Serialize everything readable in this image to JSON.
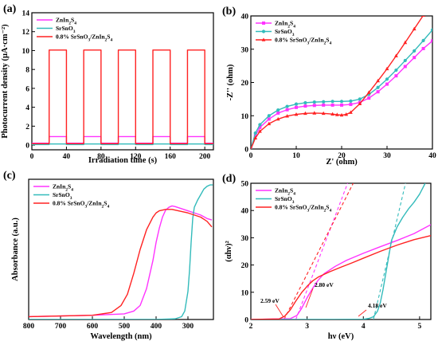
{
  "chart_data": [
    {
      "panel": "(a)",
      "type": "line",
      "xlabel": "Irradiation time (s)",
      "ylabel": "Photocurrent density (μA·cm⁻²)",
      "xlim": [
        0,
        210
      ],
      "ylim": [
        -0.5,
        14
      ],
      "xticks": [
        "0",
        "40",
        "80",
        "120",
        "160",
        "200"
      ],
      "yticks": [
        "0",
        "2",
        "4",
        "6",
        "8",
        "10",
        "12",
        "14"
      ],
      "legend": "top-left",
      "on_intervals": [
        [
          20,
          40
        ],
        [
          60,
          80
        ],
        [
          100,
          120
        ],
        [
          140,
          160
        ],
        [
          180,
          200
        ]
      ],
      "series": [
        {
          "name": "ZnIn2S4",
          "color": "#ff33ff",
          "on": 0.9,
          "off": 0.2
        },
        {
          "name": "SrSnO3",
          "color": "#33bbbb",
          "on": 0.12,
          "off": 0.05
        },
        {
          "name": "0.8% SrSnO3/ZnIn2S4",
          "color": "#ff2222",
          "on": 10.05,
          "off": 0.15
        }
      ]
    },
    {
      "panel": "(b)",
      "type": "line",
      "xlabel": "Z' (ohm)",
      "ylabel": "-Z'' (ohm)",
      "xlim": [
        0,
        40
      ],
      "ylim": [
        0,
        40
      ],
      "xticks": [
        "0",
        "10",
        "20",
        "30",
        "40"
      ],
      "yticks": [
        "0",
        "10",
        "20",
        "30",
        "40"
      ],
      "legend": "top-left",
      "series": [
        {
          "name": "ZnIn2S4",
          "color": "#ff33ff",
          "marker": "square",
          "x": [
            0,
            1,
            2,
            4,
            6,
            8,
            10,
            12,
            14,
            16,
            18,
            20,
            22,
            24,
            26,
            28,
            30,
            32,
            34,
            36,
            38,
            40
          ],
          "y": [
            0,
            4,
            6.5,
            9,
            10.8,
            11.8,
            12.5,
            12.9,
            13.1,
            13.2,
            13.2,
            13.2,
            13.4,
            14,
            15.3,
            17.2,
            19.5,
            22,
            24.8,
            27.5,
            30.2,
            32.5
          ]
        },
        {
          "name": "SrSnO3",
          "color": "#33bbbb",
          "marker": "circle",
          "x": [
            0,
            1,
            2,
            4,
            6,
            8,
            10,
            12,
            14,
            16,
            18,
            20,
            22,
            24,
            26,
            28,
            30,
            32,
            34,
            36,
            38,
            40
          ],
          "y": [
            0,
            4.8,
            7.3,
            10,
            11.7,
            12.8,
            13.5,
            13.9,
            14.1,
            14.2,
            14.3,
            14.3,
            14.4,
            15,
            16.4,
            18.5,
            21,
            23.7,
            26.6,
            29.5,
            32.6,
            35.8
          ]
        },
        {
          "name": "0.8% SrSnO3/ZnIn2S4",
          "color": "#ff2222",
          "marker": "triangle",
          "x": [
            0,
            1,
            2,
            4,
            6,
            8,
            10,
            12,
            14,
            16,
            18,
            19,
            20,
            21,
            22,
            24,
            26,
            28,
            30,
            32,
            34,
            36,
            38
          ],
          "y": [
            0,
            3.3,
            5.3,
            7.6,
            9,
            9.9,
            10.4,
            10.7,
            10.8,
            10.7,
            10.5,
            10.3,
            10.2,
            10.4,
            11,
            13.6,
            17,
            20.5,
            24.1,
            28,
            32,
            36.1,
            40.2
          ]
        }
      ]
    },
    {
      "panel": "(c)",
      "type": "line",
      "xlabel": "Wavelength (nm)",
      "ylabel": "Absorbance (a.u.)",
      "xlim": [
        800,
        220
      ],
      "ylim": [
        0,
        1
      ],
      "xticks": [
        "800",
        "700",
        "600",
        "500",
        "400",
        "300"
      ],
      "yticks": [],
      "legend": "top-left",
      "series": [
        {
          "name": "ZnIn2S4",
          "color": "#ff33ff",
          "x": [
            800,
            600,
            500,
            470,
            450,
            430,
            410,
            400,
            390,
            380,
            370,
            360,
            350,
            340,
            320,
            300,
            280,
            260,
            240,
            225
          ],
          "y": [
            0.02,
            0.03,
            0.04,
            0.06,
            0.1,
            0.22,
            0.42,
            0.55,
            0.65,
            0.73,
            0.78,
            0.8,
            0.81,
            0.805,
            0.79,
            0.775,
            0.76,
            0.745,
            0.72,
            0.71
          ]
        },
        {
          "name": "SrSnO3",
          "color": "#33bbbb",
          "x": [
            800,
            600,
            400,
            340,
            320,
            310,
            300,
            295,
            290,
            285,
            280,
            270,
            260,
            250,
            240,
            230,
            222
          ],
          "y": [
            0.0,
            0.0,
            0.0,
            0.005,
            0.02,
            0.06,
            0.2,
            0.35,
            0.55,
            0.72,
            0.8,
            0.85,
            0.89,
            0.93,
            0.95,
            0.96,
            0.96
          ]
        },
        {
          "name": "0.8% SrSnO3/ZnIn2S4",
          "color": "#ff2222",
          "x": [
            800,
            600,
            540,
            510,
            490,
            470,
            450,
            430,
            410,
            400,
            390,
            380,
            370,
            350,
            320,
            300,
            280,
            260,
            240,
            225
          ],
          "y": [
            0.02,
            0.03,
            0.05,
            0.1,
            0.18,
            0.33,
            0.5,
            0.64,
            0.73,
            0.76,
            0.775,
            0.78,
            0.785,
            0.785,
            0.77,
            0.76,
            0.745,
            0.73,
            0.7,
            0.66
          ]
        }
      ]
    },
    {
      "panel": "(d)",
      "type": "line",
      "xlabel": "hν (eV)",
      "ylabel": "(αhν)²",
      "xlim": [
        2,
        5.2
      ],
      "ylim": [
        0,
        50
      ],
      "xticks": [
        "2",
        "3",
        "4",
        "5"
      ],
      "yticks": [
        "0",
        "10",
        "20",
        "30",
        "40",
        "50"
      ],
      "legend": "top-left",
      "annotations": [
        "2.59 eV",
        "2.80 eV",
        "4.18 eV"
      ],
      "series": [
        {
          "name": "ZnIn2S4",
          "color": "#ff33ff",
          "x": [
            2.0,
            2.7,
            2.82,
            2.9,
            3.0,
            3.1,
            3.2,
            3.3,
            3.5,
            3.7,
            4.0,
            4.3,
            4.6,
            4.9,
            5.2
          ],
          "y": [
            0,
            0.3,
            1.5,
            4,
            8,
            11.5,
            14.5,
            16.8,
            19.5,
            21.7,
            24.3,
            26.7,
            29,
            31.5,
            34.8
          ]
        },
        {
          "name": "SrSnO3",
          "color": "#33bbbb",
          "x": [
            2.0,
            3.5,
            4.0,
            4.1,
            4.18,
            4.25,
            4.3,
            4.35,
            4.4,
            4.45,
            4.5,
            4.6,
            4.7,
            4.8,
            4.9,
            5.0,
            5.1
          ],
          "y": [
            0,
            0,
            0.1,
            0.4,
            1,
            3,
            6,
            11,
            17,
            23,
            29,
            34,
            37.5,
            40.5,
            43,
            46,
            50
          ]
        },
        {
          "name": "0.8% SrSnO3/ZnIn2S4",
          "color": "#ff2222",
          "x": [
            2.0,
            2.5,
            2.6,
            2.7,
            2.8,
            2.9,
            3.0,
            3.1,
            3.2,
            3.4,
            3.6,
            3.8,
            4.0,
            4.3,
            4.6,
            4.9,
            5.2
          ],
          "y": [
            0,
            0.2,
            1.2,
            3.5,
            6.8,
            9.8,
            12.2,
            14.2,
            15.6,
            17.5,
            19.2,
            20.8,
            22.5,
            25,
            27.3,
            29.3,
            30.8
          ]
        }
      ],
      "tangents": [
        {
          "series": "ZnIn2S4",
          "color": "#ff33ff",
          "x": [
            2.8,
            3.72
          ],
          "y": [
            0,
            50
          ]
        },
        {
          "series": "0.8% SrSnO3/ZnIn2S4",
          "color": "#ff2222",
          "x": [
            2.59,
            3.82
          ],
          "y": [
            0,
            50
          ]
        },
        {
          "series": "SrSnO3",
          "color": "#33bbbb",
          "x": [
            4.18,
            4.75
          ],
          "y": [
            0,
            50
          ]
        }
      ]
    }
  ]
}
